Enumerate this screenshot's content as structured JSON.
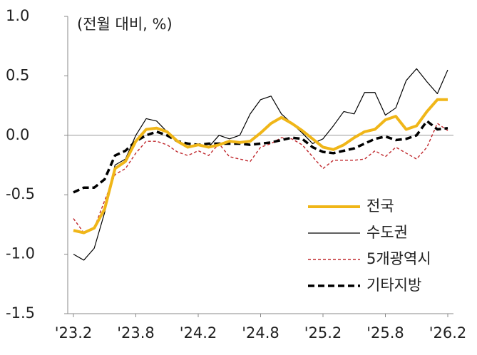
{
  "chart_data": {
    "type": "line",
    "annotation": "(전월 대비, %)",
    "categories": [
      "'23.2",
      null,
      null,
      null,
      null,
      null,
      "'23.8",
      null,
      null,
      null,
      null,
      null,
      "'24.2",
      null,
      null,
      null,
      null,
      null,
      "'24.8",
      null,
      null,
      null,
      null,
      null,
      "'25.2",
      null,
      null,
      null,
      null,
      null,
      "'25.8",
      null,
      null,
      null,
      null,
      null,
      "'26.2"
    ],
    "ylim": [
      -1.5,
      1.0
    ],
    "yticks": [
      {
        "value": 1.0,
        "label": "1.0"
      },
      0.5,
      {
        "value": 0.0,
        "label": "0.0"
      },
      -0.5,
      {
        "value": -1.0,
        "label": "-1.0"
      },
      -1.5
    ],
    "legend": "lower-right",
    "series": [
      {
        "name": "전국",
        "color": "#f0b618",
        "style": "solid",
        "width": 4,
        "values": [
          -0.8,
          -0.82,
          -0.78,
          -0.62,
          -0.28,
          -0.22,
          -0.05,
          0.05,
          0.06,
          0.03,
          -0.05,
          -0.1,
          -0.08,
          -0.1,
          -0.08,
          -0.05,
          -0.06,
          -0.05,
          0.02,
          0.1,
          0.15,
          0.1,
          0.04,
          -0.03,
          -0.1,
          -0.12,
          -0.08,
          -0.02,
          0.03,
          0.05,
          0.13,
          0.16,
          0.05,
          0.08,
          0.2,
          0.3,
          0.3
        ]
      },
      {
        "name": "수도권",
        "color": "#000000",
        "style": "solid",
        "width": 1.2,
        "values": [
          -1.0,
          -1.05,
          -0.95,
          -0.65,
          -0.25,
          -0.2,
          0.0,
          0.14,
          0.12,
          0.03,
          -0.05,
          -0.1,
          -0.08,
          -0.1,
          0.0,
          -0.03,
          0.0,
          0.18,
          0.3,
          0.33,
          0.18,
          0.1,
          0.02,
          -0.07,
          -0.03,
          0.08,
          0.2,
          0.18,
          0.36,
          0.36,
          0.17,
          0.23,
          0.46,
          0.56,
          0.45,
          0.35,
          0.55
        ]
      },
      {
        "name": "5개광역시",
        "color": "#c0282d",
        "style": "dashed",
        "width": 1.4,
        "values": [
          -0.7,
          -0.82,
          -0.78,
          -0.55,
          -0.33,
          -0.28,
          -0.15,
          -0.05,
          -0.05,
          -0.08,
          -0.14,
          -0.17,
          -0.13,
          -0.17,
          -0.07,
          -0.18,
          -0.2,
          -0.22,
          -0.1,
          -0.07,
          -0.02,
          -0.03,
          -0.08,
          -0.18,
          -0.28,
          -0.21,
          -0.21,
          -0.21,
          -0.2,
          -0.13,
          -0.18,
          -0.1,
          -0.15,
          -0.2,
          -0.1,
          0.1,
          0.04
        ]
      },
      {
        "name": "기타지방",
        "color": "#000000",
        "style": "dashed-bold",
        "width": 3.5,
        "values": [
          -0.48,
          -0.44,
          -0.44,
          -0.37,
          -0.17,
          -0.13,
          -0.05,
          0.0,
          0.03,
          0.0,
          -0.05,
          -0.07,
          -0.08,
          -0.07,
          -0.07,
          -0.07,
          -0.07,
          -0.08,
          -0.07,
          -0.06,
          -0.04,
          -0.02,
          -0.03,
          -0.1,
          -0.14,
          -0.15,
          -0.13,
          -0.11,
          -0.07,
          -0.03,
          -0.01,
          -0.04,
          -0.03,
          0.0,
          0.12,
          0.05,
          0.06
        ]
      }
    ]
  }
}
